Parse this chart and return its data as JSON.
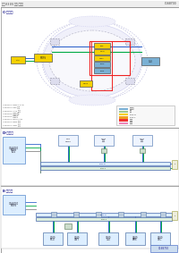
{
  "bg_color": "#ffffff",
  "header_text_left": "기아 K3 EV 수리 가이드",
  "header_text_right": "C168700",
  "sec1_label": "C-데이터",
  "sec2_label": "D-데이터",
  "sec3_label": "E-데이터",
  "car_body_color": "#f5f5ff",
  "car_edge_color": "#ccccee",
  "car_dots_color": "#ddddff",
  "yellow_box": "#f5d000",
  "blue_box": "#7ab0d4",
  "light_blue_bg": "#c8dff0",
  "light_blue_hatch": "#ddeeff",
  "green_line": "#00aa44",
  "blue_line": "#0055cc",
  "red_line": "#ee2222",
  "pink_line": "#ee88aa",
  "cyan_line": "#00cccc",
  "gray_line": "#aaaaaa",
  "section_border": "#999999",
  "legend_colors": [
    "#7ab0d4",
    "#a0c8a0",
    "#f5d000",
    "#f0a000",
    "#ee2222",
    "#ee88aa"
  ],
  "legend_labels": [
    "電源供給",
    "接地",
    "CAN-H",
    "CAN-L",
    "信号線",
    "シールド"
  ],
  "stamp_text": "C168700"
}
